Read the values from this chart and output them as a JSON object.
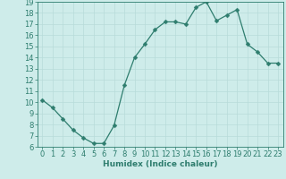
{
  "x": [
    0,
    1,
    2,
    3,
    4,
    5,
    6,
    7,
    8,
    9,
    10,
    11,
    12,
    13,
    14,
    15,
    16,
    17,
    18,
    19,
    20,
    21,
    22,
    23
  ],
  "y": [
    10.2,
    9.5,
    8.5,
    7.5,
    6.8,
    6.3,
    6.3,
    7.9,
    11.5,
    14.0,
    15.2,
    16.5,
    17.2,
    17.2,
    17.0,
    18.5,
    19.0,
    17.3,
    17.8,
    18.3,
    15.2,
    14.5,
    13.5,
    13.5
  ],
  "line_color": "#2e7d6e",
  "marker": "D",
  "marker_size": 2.5,
  "bg_color": "#ceecea",
  "grid_color": "#b8dbd9",
  "xlabel": "Humidex (Indice chaleur)",
  "ylim": [
    6,
    19
  ],
  "xlim_min": -0.5,
  "xlim_max": 23.5,
  "yticks": [
    6,
    7,
    8,
    9,
    10,
    11,
    12,
    13,
    14,
    15,
    16,
    17,
    18,
    19
  ],
  "xticks": [
    0,
    1,
    2,
    3,
    4,
    5,
    6,
    7,
    8,
    9,
    10,
    11,
    12,
    13,
    14,
    15,
    16,
    17,
    18,
    19,
    20,
    21,
    22,
    23
  ],
  "label_fontsize": 6.5,
  "tick_fontsize": 6
}
